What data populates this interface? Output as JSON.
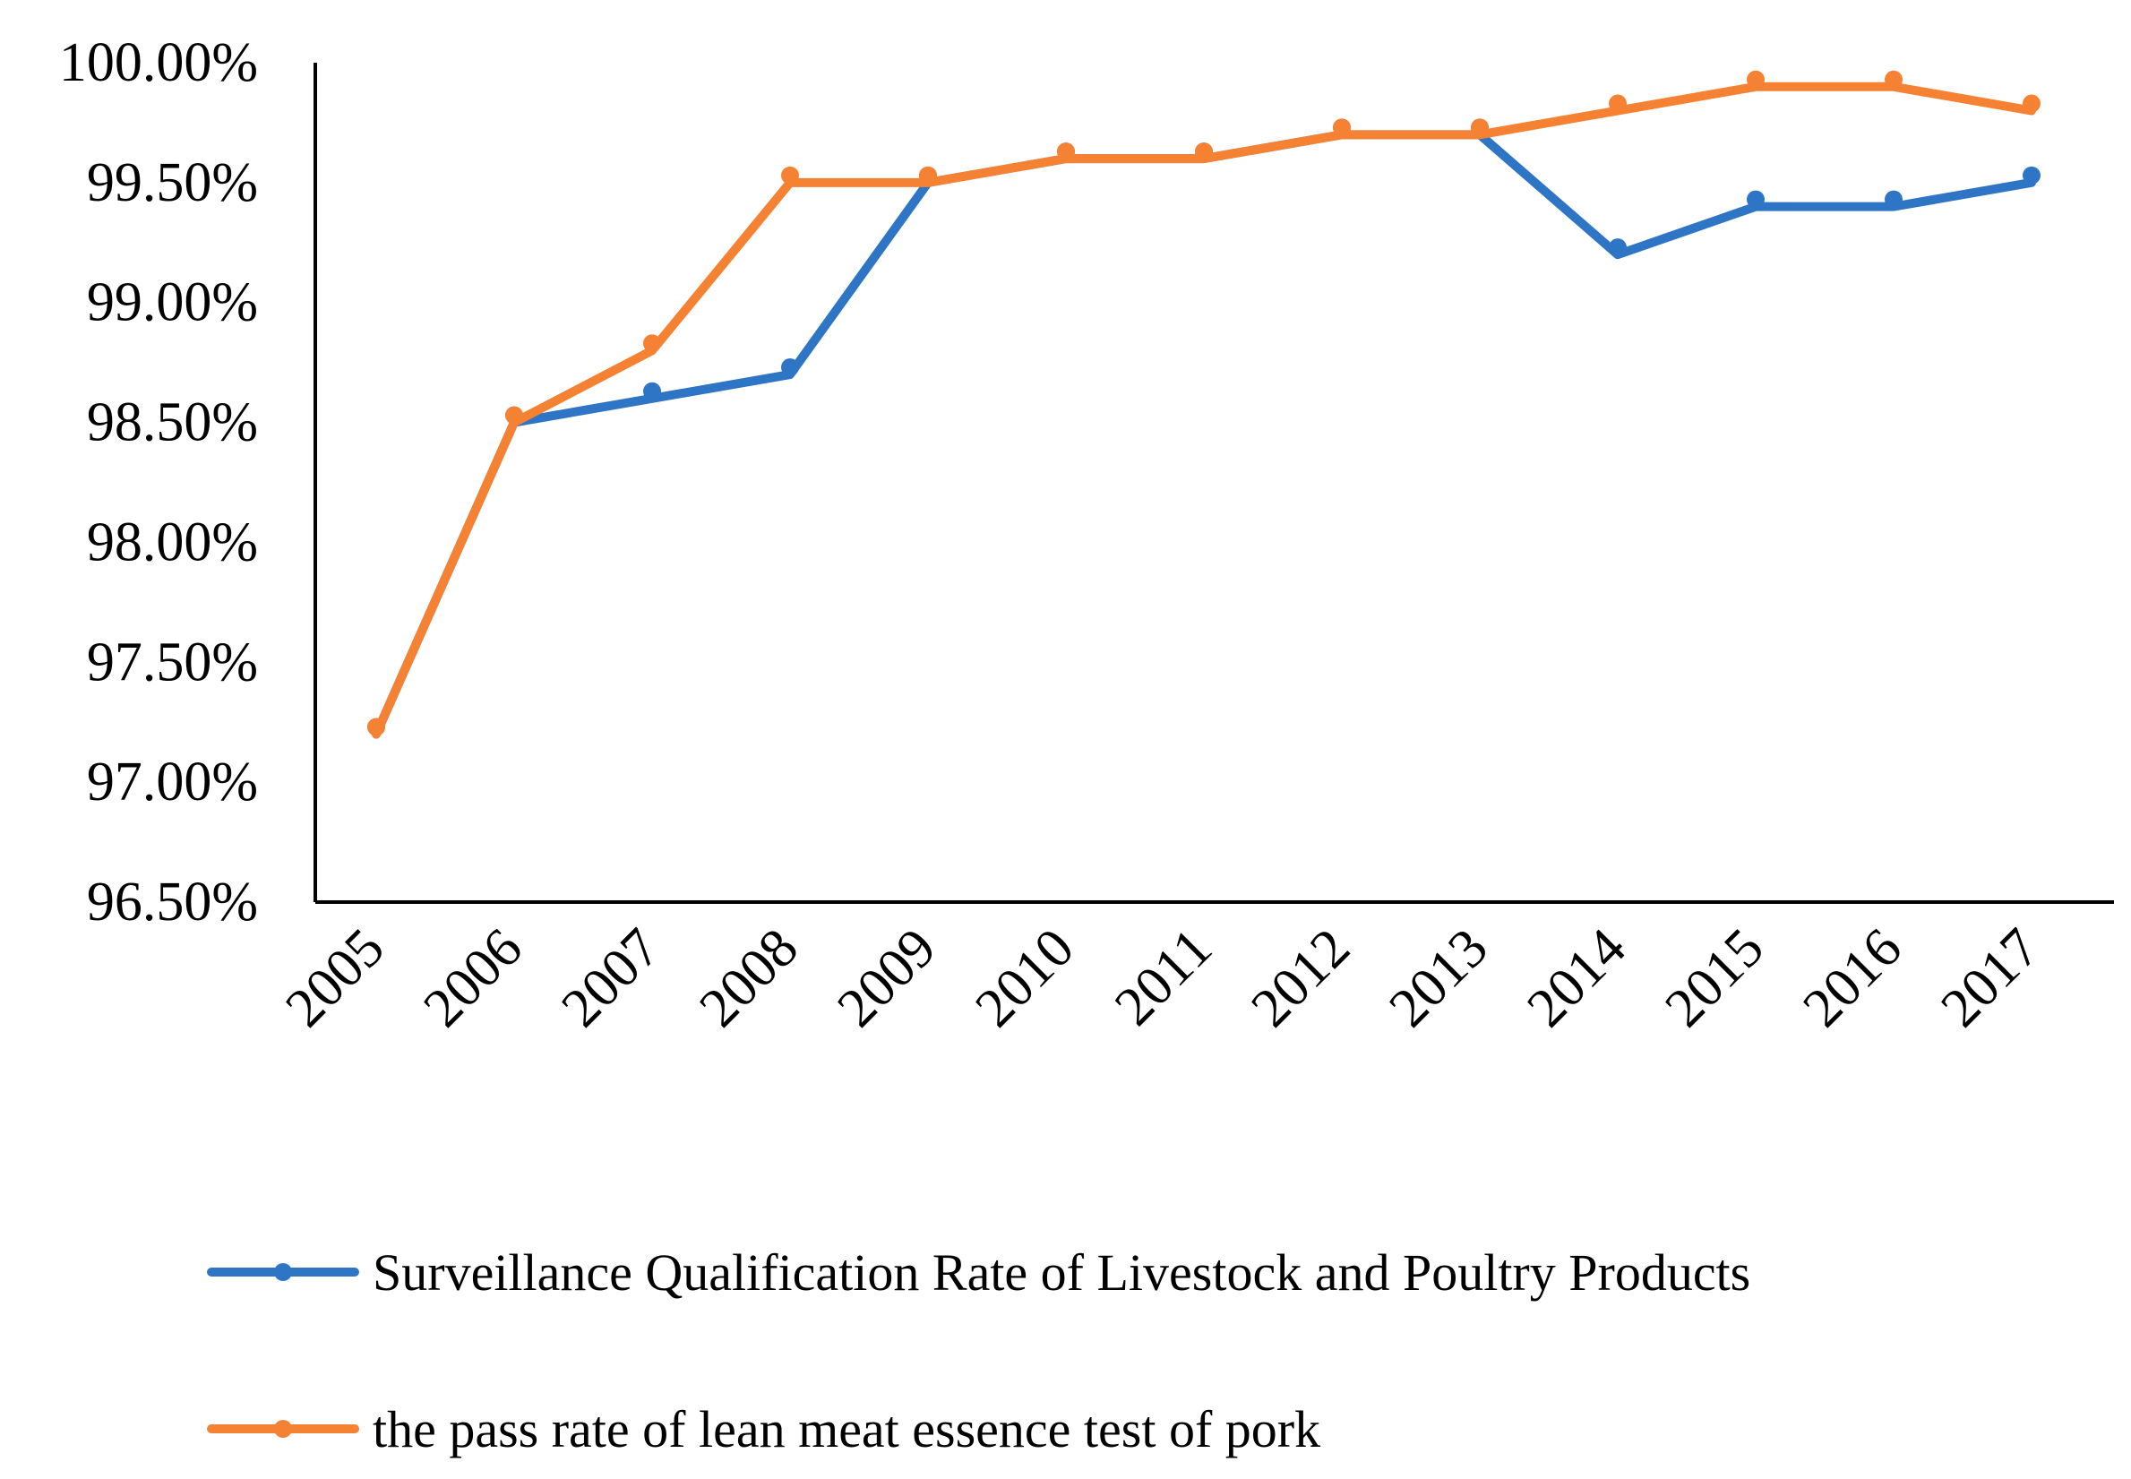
{
  "chart_data": {
    "type": "line",
    "title": "",
    "xlabel": "",
    "ylabel": "",
    "categories": [
      "2005",
      "2006",
      "2007",
      "2008",
      "2009",
      "2010",
      "2011",
      "2012",
      "2013",
      "2014",
      "2015",
      "2016",
      "2017"
    ],
    "ylim": [
      96.5,
      100.0
    ],
    "yticks": [
      96.5,
      97.0,
      97.5,
      98.0,
      98.5,
      99.0,
      99.5,
      100.0
    ],
    "ytick_labels": [
      "96.50%",
      "97.00%",
      "97.50%",
      "98.00%",
      "98.50%",
      "99.00%",
      "99.50%",
      "100.00%"
    ],
    "grid": false,
    "legend_position": "bottom",
    "series": [
      {
        "name": "Surveillance Qualification Rate of Livestock and Poultry Products",
        "color": "#2E75C6",
        "values": [
          97.2,
          98.5,
          98.6,
          98.7,
          99.5,
          99.6,
          99.6,
          99.7,
          99.7,
          99.2,
          99.4,
          99.4,
          99.5
        ]
      },
      {
        "name": "the pass rate of lean meat essence test of pork",
        "color": "#F58233",
        "values": [
          97.2,
          98.5,
          98.8,
          99.5,
          99.5,
          99.6,
          99.6,
          99.7,
          99.7,
          99.8,
          99.9,
          99.9,
          99.8
        ]
      }
    ]
  }
}
